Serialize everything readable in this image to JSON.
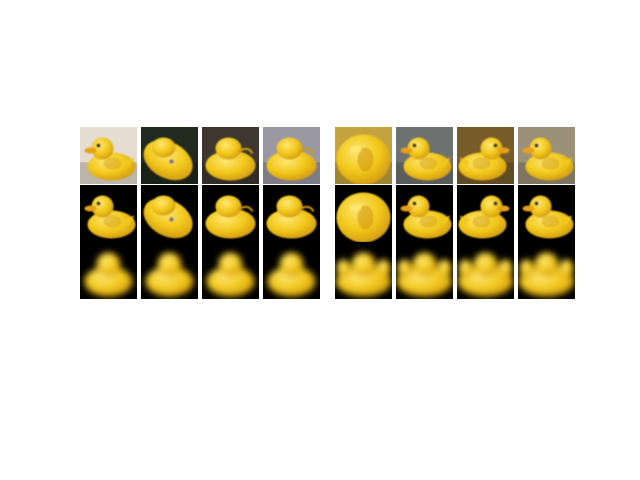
{
  "figure": {
    "background": "#ffffff",
    "panel_groups": [
      {
        "name": "left-group",
        "columns": [
          {
            "row1_bg": "#e5ddd2",
            "row1_pose": "side-left",
            "row2_pose": "side-left",
            "row3_pose": "blur-front"
          },
          {
            "row1_bg": "#202a1e",
            "row1_pose": "tilted-back",
            "row2_pose": "tilted-back",
            "row3_pose": "blur-front"
          },
          {
            "row1_bg": "#3d372f",
            "row1_pose": "back",
            "row2_pose": "back",
            "row3_pose": "blur-front"
          },
          {
            "row1_bg": "#9a98a5",
            "row1_pose": "back",
            "row2_pose": "back",
            "row3_pose": "blur-front"
          }
        ]
      },
      {
        "name": "right-group",
        "columns": [
          {
            "row1_bg": "#c2a33e",
            "row1_pose": "closeup",
            "row2_pose": "closeup",
            "row3_pose": "blur-wide"
          },
          {
            "row1_bg": "#6d7270",
            "row1_pose": "side-left",
            "row2_pose": "side-left",
            "row3_pose": "blur-wide"
          },
          {
            "row1_bg": "#775c2a",
            "row1_pose": "front-right",
            "row2_pose": "front-right",
            "row3_pose": "blur-wide"
          },
          {
            "row1_bg": "#9b9078",
            "row1_pose": "side-left",
            "row2_pose": "side-left",
            "row3_pose": "blur-wide"
          }
        ]
      }
    ],
    "colors": {
      "duck_yellow": "#f2c81c",
      "duck_shadow": "#d19a10",
      "duck_highlight": "#fde773",
      "beak_orange": "#e8a015",
      "eye_dark": "#2a2a2a",
      "mask_bg": "#000000"
    }
  }
}
